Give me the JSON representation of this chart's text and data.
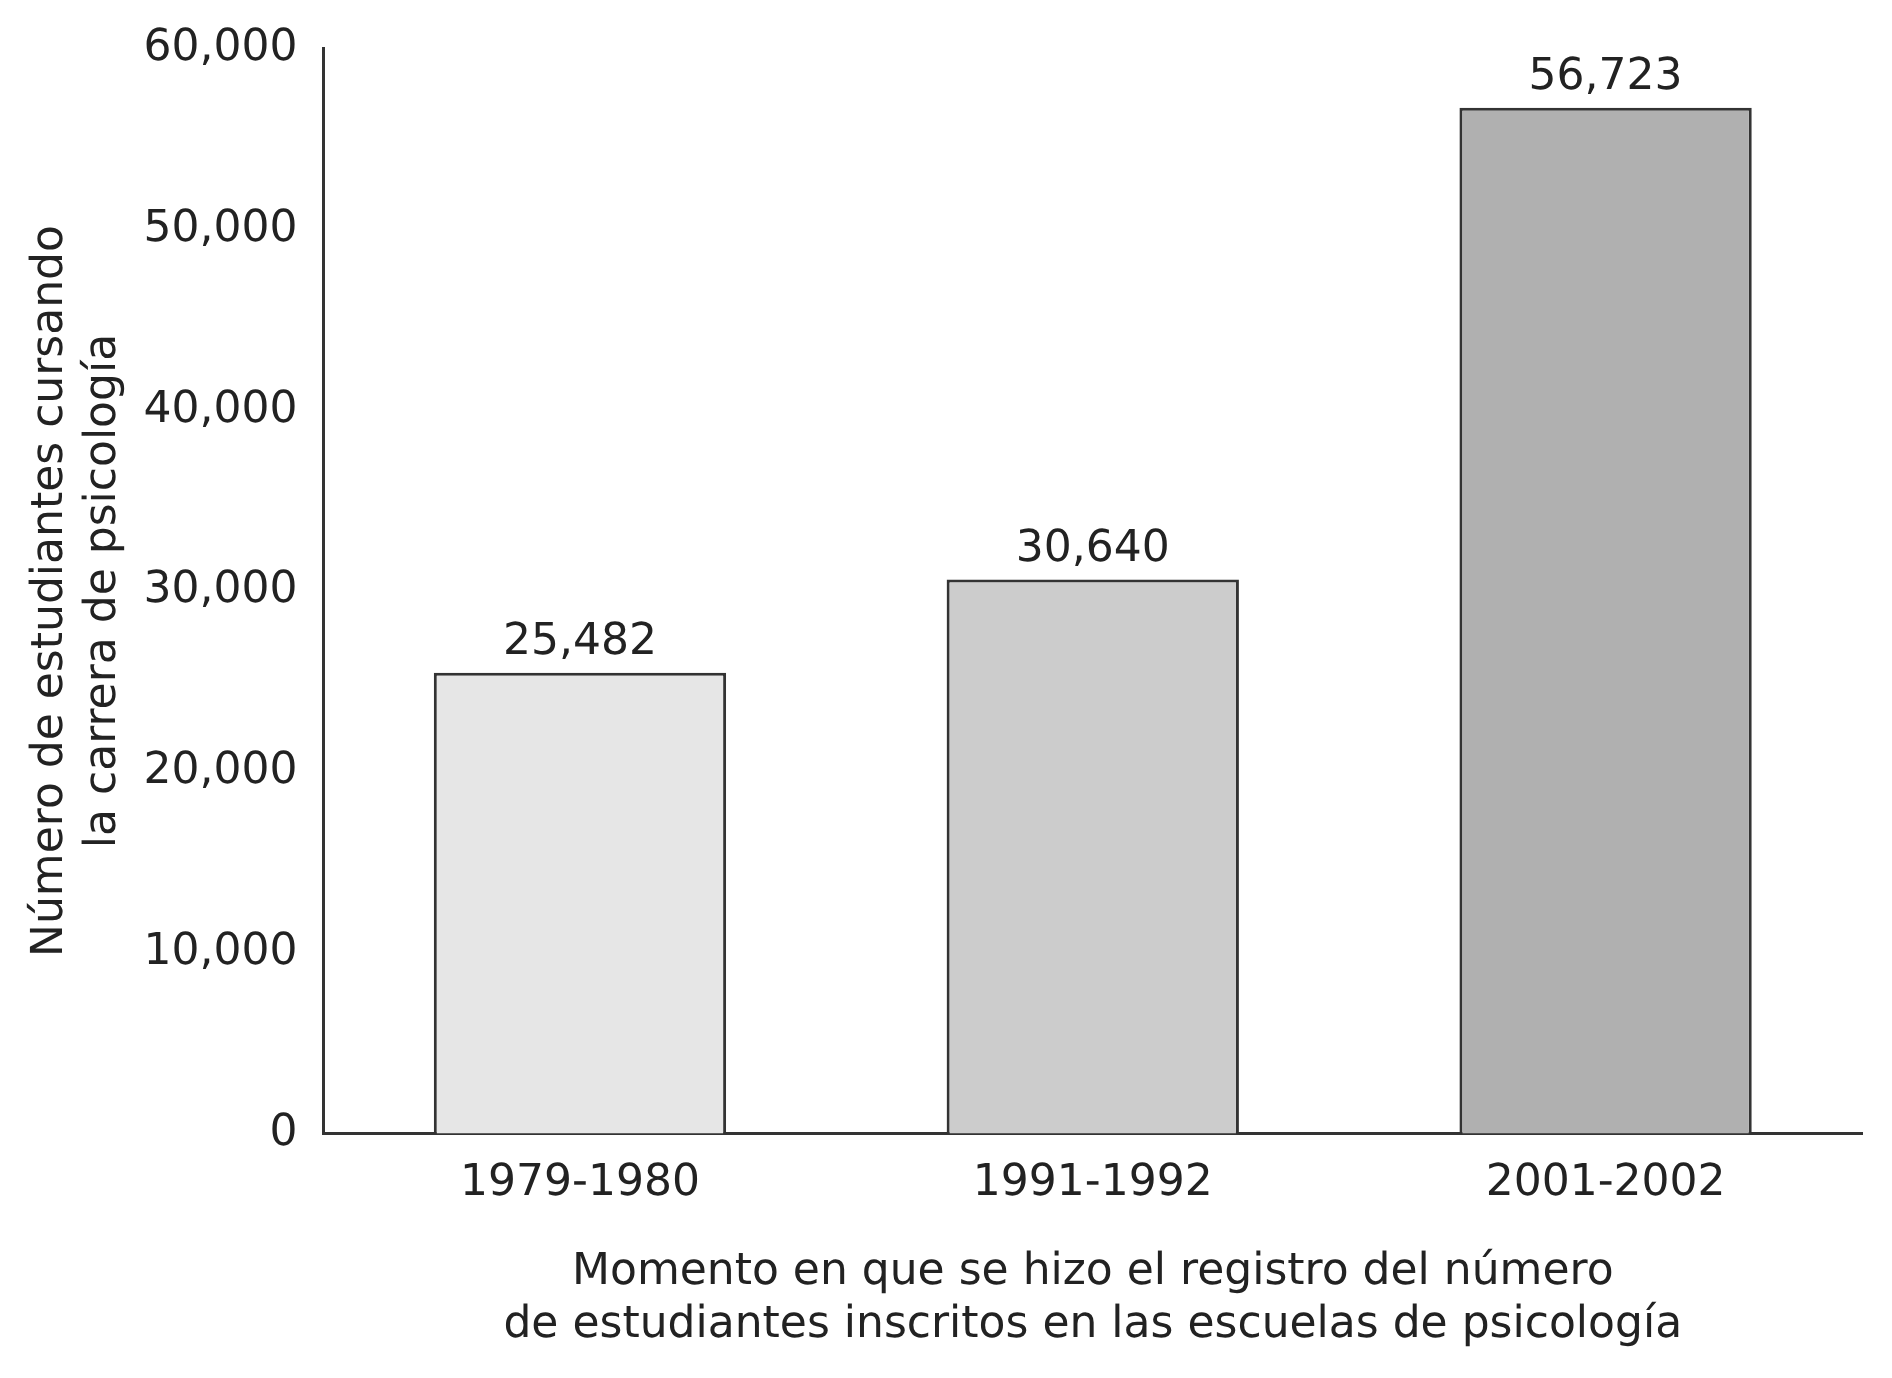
{
  "chart_data": {
    "type": "bar",
    "ylabel": "Número de estudiantes cursando\nla carrera de psicología",
    "xlabel": "Momento en que se hizo el registro del número\nde estudiantes inscritos en las escuelas de psicología",
    "categories": [
      "1979-1980",
      "1991-1992",
      "2001-2002"
    ],
    "values": [
      25482,
      30640,
      56723
    ],
    "value_labels": [
      "25,482",
      "30,640",
      "56,723"
    ],
    "colors": [
      "#e6e6e6",
      "#cccccc",
      "#b0b0b0"
    ],
    "ylim": [
      0,
      60000
    ],
    "yticks": [
      0,
      {
        "value": 10000,
        "label": "10,000"
      },
      {
        "value": 20000,
        "label": "20,000"
      },
      {
        "value": 30000,
        "label": "30,000"
      },
      {
        "value": 40000,
        "label": "40,000"
      },
      {
        "value": 50000,
        "label": "50,000"
      },
      {
        "value": 60000,
        "label": "60,000"
      }
    ],
    "grid": false,
    "legend": false
  }
}
